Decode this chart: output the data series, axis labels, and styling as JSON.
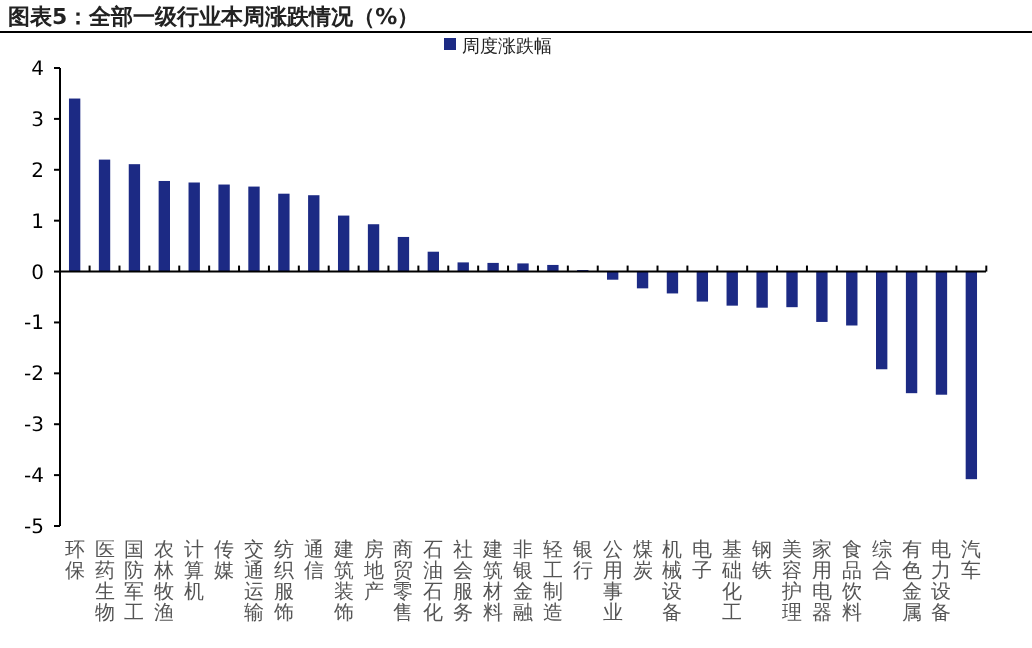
{
  "chart_data": {
    "type": "bar",
    "title": "图表5：全部一级行业本周涨跌情况（%）",
    "categories": [
      "环保",
      "医药生物",
      "国防军工",
      "农林牧渔",
      "计算机",
      "传媒",
      "交通运输",
      "纺织服饰",
      "通信",
      "建筑装饰",
      "房地产",
      "商贸零售",
      "石油石化",
      "社会服务",
      "建筑材料",
      "非银金融",
      "轻工制造",
      "银行",
      "公用事业",
      "煤炭",
      "机械设备",
      "电子",
      "基础化工",
      "钢铁",
      "美容护理",
      "家用电器",
      "食品饮料",
      "综合",
      "有色金属",
      "电力设备",
      "汽车"
    ],
    "series": [
      {
        "name": "周度涨跌幅",
        "color": "#1c2a84",
        "values": [
          3.4,
          2.2,
          2.11,
          1.78,
          1.75,
          1.71,
          1.67,
          1.53,
          1.5,
          1.1,
          0.93,
          0.68,
          0.39,
          0.18,
          0.17,
          0.16,
          0.13,
          0.03,
          -0.16,
          -0.33,
          -0.43,
          -0.59,
          -0.67,
          -0.71,
          -0.7,
          -0.99,
          -1.06,
          -1.92,
          -2.39,
          -2.42,
          -4.08
        ]
      }
    ],
    "ylim": [
      -5,
      4
    ],
    "yticks": [
      -5,
      -4,
      -3,
      -2,
      -1,
      0,
      1,
      2,
      3,
      4
    ],
    "legend": "top"
  }
}
